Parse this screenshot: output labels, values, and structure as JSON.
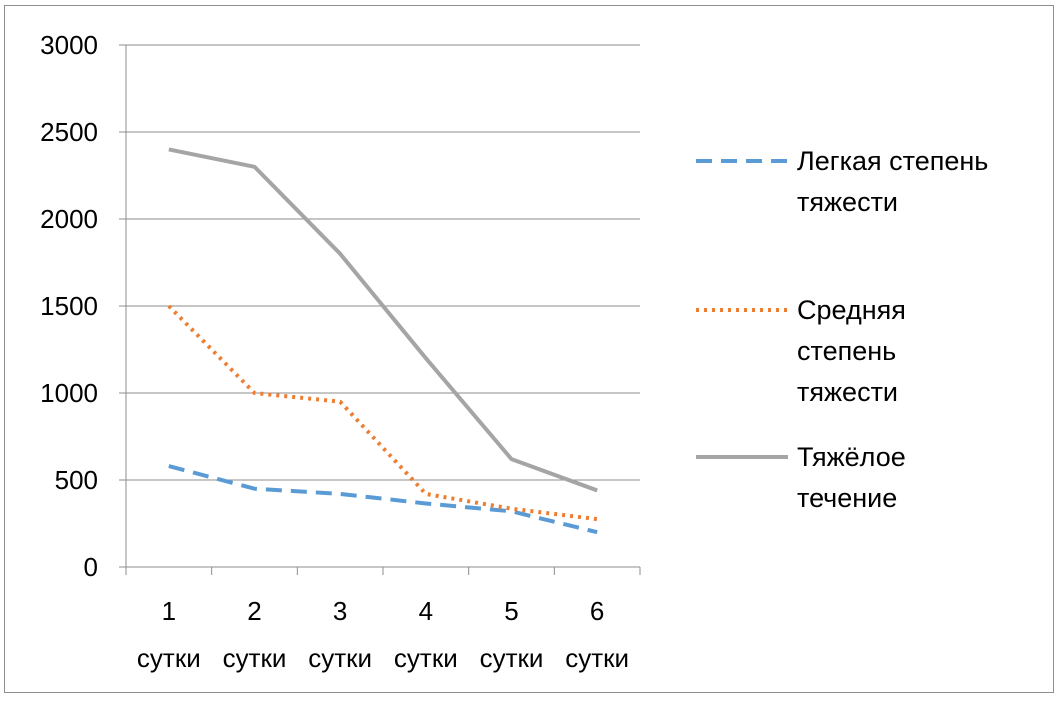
{
  "chart_data": {
    "type": "line",
    "categories": [
      "1 сутки",
      "2 сутки",
      "3 сутки",
      "4 сутки",
      "5 сутки",
      "6 сутки"
    ],
    "category_lines": [
      [
        "1",
        "сутки"
      ],
      [
        "2",
        "сутки"
      ],
      [
        "3",
        "сутки"
      ],
      [
        "4",
        "сутки"
      ],
      [
        "5",
        "сутки"
      ],
      [
        "6",
        "сутки"
      ]
    ],
    "ylim": [
      0,
      3000
    ],
    "yticks": [
      0,
      500,
      1000,
      1500,
      2000,
      2500,
      3000
    ],
    "grid": true,
    "legend_position": "right",
    "series": [
      {
        "name": "Легкая степень тяжести",
        "name_lines": [
          "Легкая степень",
          "тяжести"
        ],
        "values": [
          580,
          450,
          420,
          365,
          320,
          200
        ],
        "color": "#5b9bd5",
        "style": "dashed"
      },
      {
        "name": "Средняя степень тяжести",
        "name_lines": [
          "Средняя",
          "степень",
          "тяжести"
        ],
        "values": [
          1500,
          1000,
          950,
          420,
          335,
          275
        ],
        "color": "#ed7d31",
        "style": "dotted"
      },
      {
        "name": "Тяжёлое течение",
        "name_lines": [
          "Тяжёлое",
          "течение"
        ],
        "values": [
          2400,
          2300,
          1800,
          1200,
          620,
          440
        ],
        "color": "#a5a5a5",
        "style": "solid"
      }
    ]
  }
}
